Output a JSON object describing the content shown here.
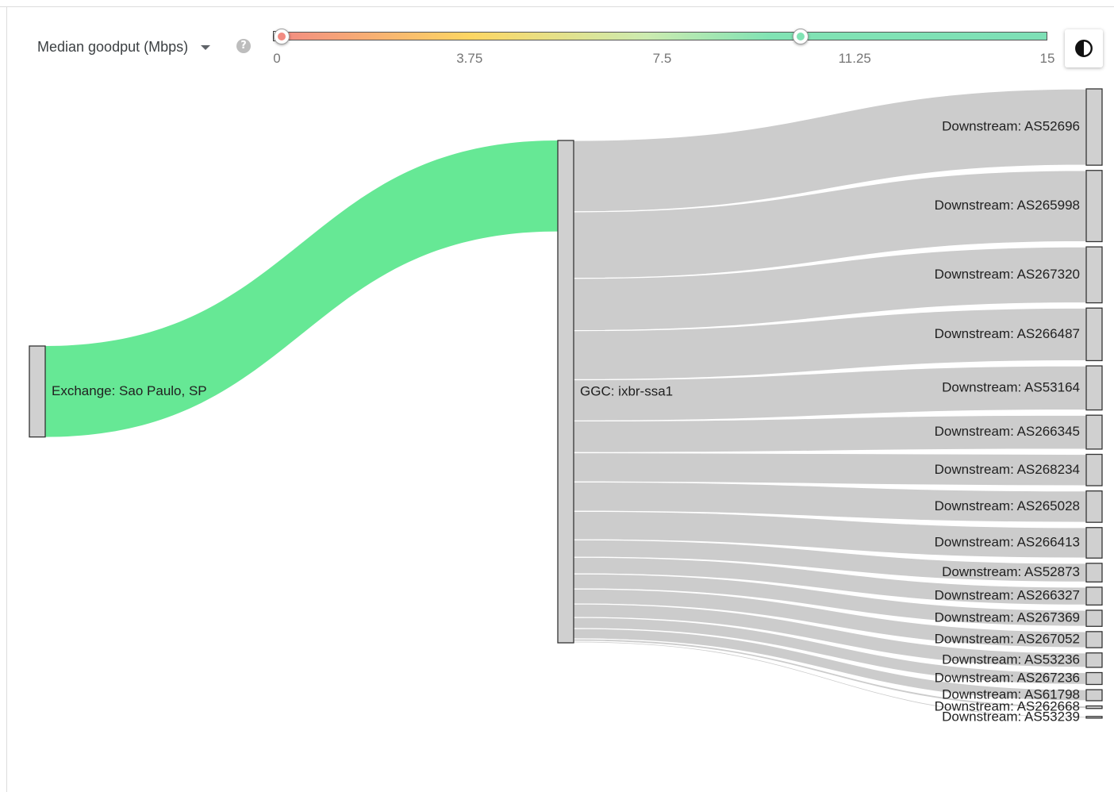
{
  "controls": {
    "metric": "Median goodput (Mbps)",
    "metric_dropdown_icon": "chevron-down-icon",
    "help_icon": "help-icon",
    "help_glyph": "?",
    "contrast_icon": "contrast-icon"
  },
  "color_scale": {
    "ticks": [
      "0",
      "3.75",
      "7.5",
      "11.25",
      "15"
    ],
    "min": 0,
    "max": 15,
    "handles": [
      {
        "value": 0.1,
        "color": "#f28b82"
      },
      {
        "value": 10.2,
        "color": "#81e3b4"
      }
    ],
    "gradient": [
      "#f28b82",
      "#fdd663",
      "#ccebb0",
      "#81e3b4"
    ]
  },
  "chart_data": {
    "type": "sankey",
    "colors": {
      "exchange_link": "#66e895",
      "downstream_link": "#cccccc",
      "node": "#d0d0d0"
    },
    "nodes": [
      {
        "id": "exchange",
        "label": "Exchange: Sao Paulo, SP",
        "column": 0
      },
      {
        "id": "ggc",
        "label": "GGC: ixbr-ssa1",
        "column": 1
      },
      {
        "id": "AS52696",
        "label": "Downstream: AS52696",
        "column": 2
      },
      {
        "id": "AS265998",
        "label": "Downstream: AS265998",
        "column": 2
      },
      {
        "id": "AS267320",
        "label": "Downstream: AS267320",
        "column": 2
      },
      {
        "id": "AS266487",
        "label": "Downstream: AS266487",
        "column": 2
      },
      {
        "id": "AS53164",
        "label": "Downstream: AS53164",
        "column": 2
      },
      {
        "id": "AS266345",
        "label": "Downstream: AS266345",
        "column": 2
      },
      {
        "id": "AS268234",
        "label": "Downstream: AS268234",
        "column": 2
      },
      {
        "id": "AS265028",
        "label": "Downstream: AS265028",
        "column": 2
      },
      {
        "id": "AS266413",
        "label": "Downstream: AS266413",
        "column": 2
      },
      {
        "id": "AS52873",
        "label": "Downstream: AS52873",
        "column": 2
      },
      {
        "id": "AS266327",
        "label": "Downstream: AS266327",
        "column": 2
      },
      {
        "id": "AS267369",
        "label": "Downstream: AS267369",
        "column": 2
      },
      {
        "id": "AS267052",
        "label": "Downstream: AS267052",
        "column": 2
      },
      {
        "id": "AS53236",
        "label": "Downstream: AS53236",
        "column": 2
      },
      {
        "id": "AS267236",
        "label": "Downstream: AS267236",
        "column": 2
      },
      {
        "id": "AS61798",
        "label": "Downstream: AS61798",
        "column": 2
      },
      {
        "id": "AS262668",
        "label": "Downstream: AS262668",
        "column": 2
      },
      {
        "id": "AS53239",
        "label": "Downstream: AS53239",
        "column": 2
      }
    ],
    "links": [
      {
        "source": "exchange",
        "target": "ggc",
        "value": 114,
        "goodput": 10
      },
      {
        "source": "ggc",
        "target": "AS52696",
        "value": 90
      },
      {
        "source": "ggc",
        "target": "AS265998",
        "value": 84
      },
      {
        "source": "ggc",
        "target": "AS267320",
        "value": 66
      },
      {
        "source": "ggc",
        "target": "AS266487",
        "value": 62
      },
      {
        "source": "ggc",
        "target": "AS53164",
        "value": 52
      },
      {
        "source": "ggc",
        "target": "AS266345",
        "value": 40
      },
      {
        "source": "ggc",
        "target": "AS268234",
        "value": 37
      },
      {
        "source": "ggc",
        "target": "AS265028",
        "value": 37
      },
      {
        "source": "ggc",
        "target": "AS266413",
        "value": 36
      },
      {
        "source": "ggc",
        "target": "AS52873",
        "value": 22
      },
      {
        "source": "ggc",
        "target": "AS266327",
        "value": 21
      },
      {
        "source": "ggc",
        "target": "AS267369",
        "value": 19
      },
      {
        "source": "ggc",
        "target": "AS267052",
        "value": 19
      },
      {
        "source": "ggc",
        "target": "AS53236",
        "value": 17
      },
      {
        "source": "ggc",
        "target": "AS267236",
        "value": 14
      },
      {
        "source": "ggc",
        "target": "AS61798",
        "value": 13
      },
      {
        "source": "ggc",
        "target": "AS262668",
        "value": 3
      },
      {
        "source": "ggc",
        "target": "AS53239",
        "value": 2
      }
    ]
  }
}
